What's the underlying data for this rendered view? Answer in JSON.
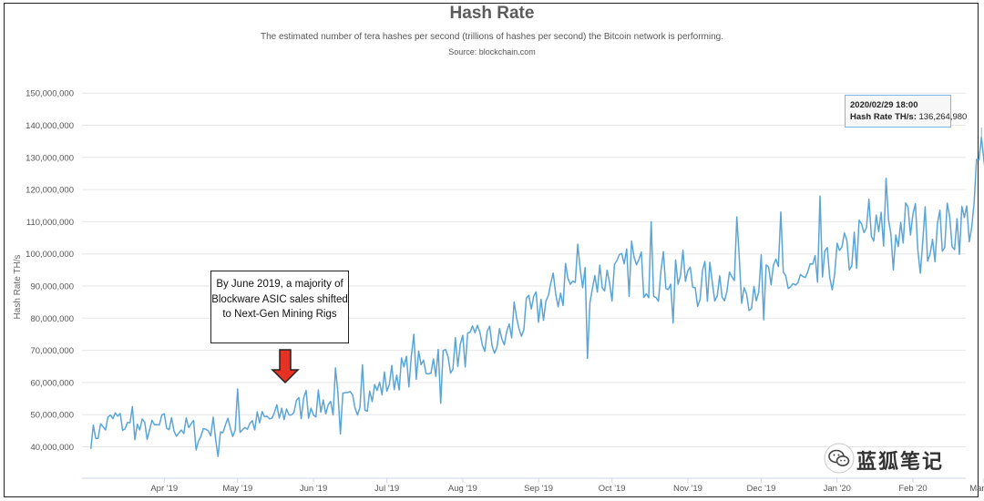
{
  "chart_data": {
    "type": "line",
    "title": "Hash Rate",
    "subtitle": "The estimated number of tera hashes per second (trillions of hashes per second) the Bitcoin network is performing.",
    "source": "Source: blockchain.com",
    "ylabel": "Hash Rate TH/s",
    "xlabel": "",
    "ylim": [
      35000000,
      150000000
    ],
    "yticks": [
      "40,000,000",
      "50,000,000",
      "60,000,000",
      "70,000,000",
      "80,000,000",
      "90,000,000",
      "100,000,000",
      "110,000,000",
      "120,000,000",
      "130,000,000",
      "140,000,000",
      "150,000,000"
    ],
    "xticks": [
      "Apr '19",
      "May '19",
      "Jun '19",
      "Jul '19",
      "Aug '19",
      "Sep '19",
      "Oct '19",
      "Nov '19",
      "Dec '19",
      "Jan '20",
      "Feb '20",
      "Mar '20"
    ],
    "grid": true,
    "legend": "none",
    "series": [
      {
        "color": "#5aa5d6",
        "anchors": [
          [
            "2019-03-02",
            43000000
          ],
          [
            "2019-03-07",
            46000000
          ],
          [
            "2019-03-12",
            49000000
          ],
          [
            "2019-03-17",
            46000000
          ],
          [
            "2019-03-22",
            45500000
          ],
          [
            "2019-03-27",
            45000000
          ],
          [
            "2019-04-01",
            47000000
          ],
          [
            "2019-04-06",
            46000000
          ],
          [
            "2019-04-11",
            45500000
          ],
          [
            "2019-04-16",
            45000000
          ],
          [
            "2019-04-21",
            46000000
          ],
          [
            "2019-04-26",
            45500000
          ],
          [
            "2019-05-01",
            46000000
          ],
          [
            "2019-05-06",
            47000000
          ],
          [
            "2019-05-11",
            48000000
          ],
          [
            "2019-05-16",
            49000000
          ],
          [
            "2019-05-21",
            51000000
          ],
          [
            "2019-05-26",
            52000000
          ],
          [
            "2019-06-01",
            53000000
          ],
          [
            "2019-06-06",
            53500000
          ],
          [
            "2019-06-11",
            53000000
          ],
          [
            "2019-06-16",
            53500000
          ],
          [
            "2019-06-21",
            55000000
          ],
          [
            "2019-06-26",
            57000000
          ],
          [
            "2019-07-01",
            60000000
          ],
          [
            "2019-07-06",
            63000000
          ],
          [
            "2019-07-11",
            64000000
          ],
          [
            "2019-07-16",
            65000000
          ],
          [
            "2019-07-21",
            67000000
          ],
          [
            "2019-07-26",
            68000000
          ],
          [
            "2019-08-01",
            70000000
          ],
          [
            "2019-08-06",
            72000000
          ],
          [
            "2019-08-11",
            73000000
          ],
          [
            "2019-08-16",
            72000000
          ],
          [
            "2019-08-21",
            76000000
          ],
          [
            "2019-08-26",
            79000000
          ],
          [
            "2019-09-01",
            83000000
          ],
          [
            "2019-09-06",
            87000000
          ],
          [
            "2019-09-11",
            89000000
          ],
          [
            "2019-09-16",
            91000000
          ],
          [
            "2019-09-21",
            92000000
          ],
          [
            "2019-09-26",
            93000000
          ],
          [
            "2019-10-01",
            92000000
          ],
          [
            "2019-10-06",
            94000000
          ],
          [
            "2019-10-11",
            95000000
          ],
          [
            "2019-10-16",
            93000000
          ],
          [
            "2019-10-21",
            93000000
          ],
          [
            "2019-10-26",
            96000000
          ],
          [
            "2019-11-01",
            92000000
          ],
          [
            "2019-11-06",
            90000000
          ],
          [
            "2019-11-11",
            91000000
          ],
          [
            "2019-11-16",
            92000000
          ],
          [
            "2019-11-21",
            92000000
          ],
          [
            "2019-11-26",
            90000000
          ],
          [
            "2019-12-01",
            93000000
          ],
          [
            "2019-12-06",
            91000000
          ],
          [
            "2019-12-11",
            92000000
          ],
          [
            "2019-12-16",
            90000000
          ],
          [
            "2019-12-21",
            91000000
          ],
          [
            "2019-12-26",
            93000000
          ],
          [
            "2020-01-01",
            97000000
          ],
          [
            "2020-01-06",
            100000000
          ],
          [
            "2020-01-11",
            104000000
          ],
          [
            "2020-01-16",
            105000000
          ],
          [
            "2020-01-21",
            107000000
          ],
          [
            "2020-01-26",
            108000000
          ],
          [
            "2020-02-01",
            109000000
          ],
          [
            "2020-02-06",
            107000000
          ],
          [
            "2020-02-11",
            106000000
          ],
          [
            "2020-02-16",
            108000000
          ],
          [
            "2020-02-21",
            109000000
          ],
          [
            "2020-02-26",
            112000000
          ],
          [
            "2020-02-29",
            136264980
          ],
          [
            "2020-03-02",
            118000000
          ],
          [
            "2020-03-07",
            120000000
          ]
        ],
        "spikes": [
          [
            "2019-03-19",
            52500000
          ],
          [
            "2019-04-14",
            39000000
          ],
          [
            "2019-04-23",
            37000000
          ],
          [
            "2019-05-01",
            58000000
          ],
          [
            "2019-05-29",
            57500000
          ],
          [
            "2019-06-10",
            64500000
          ],
          [
            "2019-06-12",
            44000000
          ],
          [
            "2019-06-21",
            65500000
          ],
          [
            "2019-07-12",
            75000000
          ],
          [
            "2019-07-23",
            53500000
          ],
          [
            "2019-08-06",
            75500000
          ],
          [
            "2019-08-22",
            85000000
          ],
          [
            "2019-09-12",
            97000000
          ],
          [
            "2019-09-17",
            103000000
          ],
          [
            "2019-09-21",
            67500000
          ],
          [
            "2019-10-09",
            104000000
          ],
          [
            "2019-10-17",
            110000000
          ],
          [
            "2019-10-26",
            78500000
          ],
          [
            "2019-11-21",
            111500000
          ],
          [
            "2019-12-02",
            79500000
          ],
          [
            "2019-12-09",
            113000000
          ],
          [
            "2019-12-25",
            118000000
          ],
          [
            "2020-01-14",
            117000000
          ],
          [
            "2020-01-21",
            123500000
          ],
          [
            "2020-01-24",
            95000000
          ],
          [
            "2020-02-04",
            94000000
          ],
          [
            "2020-02-29",
            136264980
          ],
          [
            "2020-03-04",
            128500000
          ]
        ]
      }
    ],
    "annotation": "By June 2019, a majority of Blockware ASIC sales shifted to Next-Gen Mining Rigs",
    "tooltip": {
      "date": "2020/02/29 18:00",
      "label": "Hash Rate TH/s",
      "value": "136,264,980"
    }
  },
  "watermark": {
    "text": "蓝狐笔记",
    "icon": "wechat-icon"
  }
}
